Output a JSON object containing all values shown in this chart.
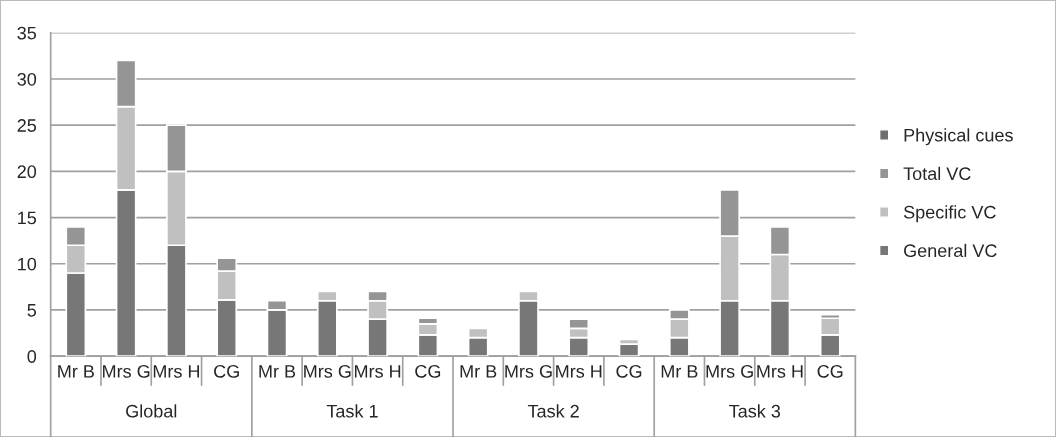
{
  "chart_data": {
    "type": "bar",
    "stacked": true,
    "categories": [
      "Mr B",
      "Mrs G",
      "Mrs H",
      "CG",
      "Mr B",
      "Mrs G",
      "Mrs H",
      "CG",
      "Mr B",
      "Mrs G",
      "Mrs H",
      "CG",
      "Mr B",
      "Mrs G",
      "Mrs H",
      "CG"
    ],
    "annotations": [
      "Global",
      "Task 1",
      "Task 2",
      "Task 3"
    ],
    "series": [
      {
        "name": "General VC",
        "color": "#777777",
        "values": [
          9,
          18,
          12,
          6.1,
          5,
          6,
          4,
          2.3,
          2,
          6,
          2,
          1.3,
          2,
          6,
          6,
          2.3
        ]
      },
      {
        "name": "Specific VC",
        "color": "#c0c0c0",
        "values": [
          3,
          9,
          8,
          3.1,
          null,
          1,
          2,
          1.2,
          1,
          1,
          1,
          0.5,
          2,
          7,
          5,
          1.8
        ]
      },
      {
        "name": "Total VC",
        "color": "#959595",
        "values": [
          2,
          5,
          5,
          1.4,
          1,
          null,
          1,
          0.6,
          null,
          null,
          1,
          null,
          1,
          5,
          3,
          0.4
        ]
      },
      {
        "name": "Physical cues",
        "color": "#6e6e6e",
        "values": [
          null,
          null,
          null,
          null,
          null,
          null,
          null,
          null,
          null,
          null,
          null,
          null,
          null,
          null,
          null,
          null
        ]
      }
    ],
    "ylim": [
      0,
      35
    ],
    "yticks": [
      0,
      5,
      10,
      15,
      20,
      25,
      30,
      35
    ],
    "grid": "y",
    "legend": "right"
  }
}
